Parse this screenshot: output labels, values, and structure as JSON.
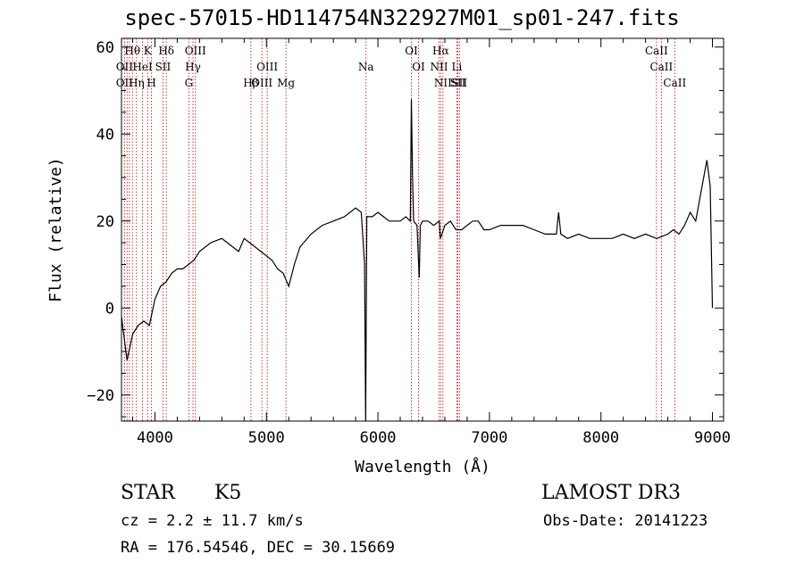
{
  "chart_data": {
    "type": "line",
    "title": "spec-57015-HD114754N322927M01_sp01-247.fits",
    "xlabel": "Wavelength (Å)",
    "ylabel": "Flux (relative)",
    "xlim": [
      3700,
      9100
    ],
    "ylim": [
      -26,
      62
    ],
    "x_ticks": [
      4000,
      5000,
      6000,
      7000,
      8000,
      9000
    ],
    "y_ticks": [
      -20,
      0,
      20,
      40,
      60
    ],
    "grid": false,
    "series": [
      {
        "x": [
          3700,
          3750,
          3800,
          3850,
          3900,
          3950,
          4000,
          4050,
          4100,
          4150,
          4200,
          4250,
          4300,
          4350,
          4400,
          4450,
          4500,
          4550,
          4600,
          4650,
          4700,
          4750,
          4800,
          4850,
          4900,
          4950,
          5000,
          5050,
          5100,
          5150,
          5200,
          5250,
          5300,
          5400,
          5500,
          5600,
          5700,
          5800,
          5850,
          5880,
          5890,
          5900,
          5950,
          6000,
          6050,
          6100,
          6150,
          6200,
          6250,
          6290,
          6300,
          6310,
          6320,
          6350,
          6370,
          6380,
          6400,
          6450,
          6500,
          6550,
          6560,
          6600,
          6650,
          6700,
          6750,
          6800,
          6850,
          6900,
          6950,
          7000,
          7100,
          7200,
          7300,
          7400,
          7500,
          7600,
          7620,
          7640,
          7700,
          7800,
          7900,
          8000,
          8100,
          8200,
          8300,
          8400,
          8500,
          8600,
          8650,
          8700,
          8750,
          8800,
          8850,
          8900,
          8950,
          8980,
          9000
        ],
        "y": [
          -2,
          -12,
          -6,
          -4,
          -3,
          -4,
          2,
          5,
          6,
          8,
          9,
          9,
          10,
          11,
          13,
          14,
          15,
          15.5,
          16,
          15,
          14,
          13,
          16,
          15,
          14,
          13,
          12,
          11,
          9,
          8,
          5,
          10,
          14,
          17,
          19,
          20,
          21,
          23,
          22,
          10,
          -26,
          21,
          21,
          22,
          21,
          20,
          20,
          20,
          21,
          20,
          48,
          30,
          20,
          19,
          7,
          19,
          20,
          20,
          19,
          20,
          16,
          19,
          20,
          18,
          18,
          19,
          20,
          20,
          18,
          18,
          19,
          19,
          19,
          18,
          17,
          17,
          22,
          17,
          16,
          17,
          16,
          16,
          16,
          17,
          16,
          17,
          16,
          17,
          18,
          17,
          19,
          22,
          20,
          27,
          34,
          28,
          0
        ]
      }
    ],
    "line_labels": [
      {
        "text": "Hθ",
        "wl": 3798
      },
      {
        "text": "OII",
        "wl": 3727
      },
      {
        "text": "OII",
        "wl": 3727
      },
      {
        "text": "Hη",
        "wl": 3835
      },
      {
        "text": "K",
        "wl": 3934
      },
      {
        "text": "HeI",
        "wl": 3889
      },
      {
        "text": "H",
        "wl": 3969
      },
      {
        "text": "Hδ",
        "wl": 4102
      },
      {
        "text": "SII",
        "wl": 4072
      },
      {
        "text": "OIII",
        "wl": 4363
      },
      {
        "text": "Hγ",
        "wl": 4341
      },
      {
        "text": "G",
        "wl": 4304
      },
      {
        "text": "Hβ",
        "wl": 4861
      },
      {
        "text": "OIII",
        "wl": 5007
      },
      {
        "text": "OIII",
        "wl": 4959
      },
      {
        "text": "Mg",
        "wl": 5175
      },
      {
        "text": "Na",
        "wl": 5893
      },
      {
        "text": "OI",
        "wl": 6300
      },
      {
        "text": "OI",
        "wl": 6364
      },
      {
        "text": "Hα",
        "wl": 6563
      },
      {
        "text": "NII",
        "wl": 6548
      },
      {
        "text": "NII",
        "wl": 6583
      },
      {
        "text": "SII",
        "wl": 6717
      },
      {
        "text": "Li",
        "wl": 6708
      },
      {
        "text": "SII",
        "wl": 6731
      },
      {
        "text": "CaII",
        "wl": 8498
      },
      {
        "text": "CaII",
        "wl": 8542
      },
      {
        "text": "CaII",
        "wl": 8662
      }
    ],
    "line_markers": [
      3727,
      3750,
      3771,
      3798,
      3835,
      3889,
      3934,
      3969,
      4072,
      4102,
      4304,
      4341,
      4363,
      4861,
      4959,
      5007,
      5175,
      5893,
      6300,
      6364,
      6548,
      6563,
      6583,
      6708,
      6717,
      6731,
      8498,
      8542,
      8662
    ]
  },
  "footer": {
    "object_class": "STAR",
    "subclass": "K5",
    "survey": "LAMOST DR3",
    "cz": "cz = 2.2 ± 11.7 km/s",
    "obs_date": "Obs-Date: 20141223",
    "coords": "RA = 176.54546, DEC =  30.15669"
  },
  "colors": {
    "line": "#000000",
    "marker": "#cc0000"
  }
}
